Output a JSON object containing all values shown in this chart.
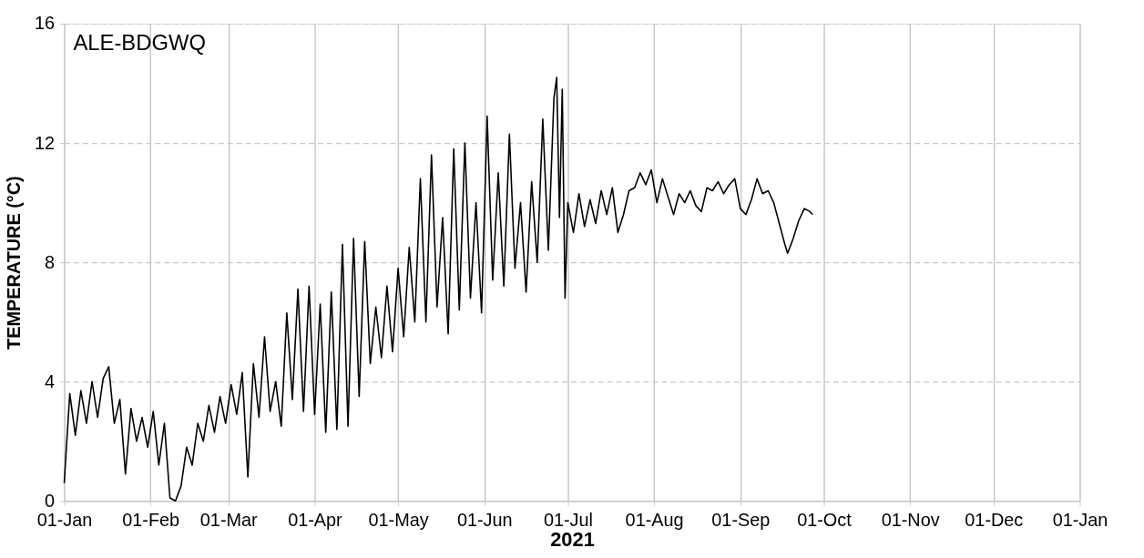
{
  "chart_data": {
    "type": "line",
    "xlabel": "2021",
    "ylabel": "TEMPERATURE (°C)",
    "annotations": [
      "ALE-BDGWQ"
    ],
    "x": [
      "2021-01-01",
      "2021-01-03",
      "2021-01-05",
      "2021-01-07",
      "2021-01-09",
      "2021-01-11",
      "2021-01-13",
      "2021-01-15",
      "2021-01-17",
      "2021-01-19",
      "2021-01-21",
      "2021-01-23",
      "2021-01-25",
      "2021-01-27",
      "2021-01-29",
      "2021-01-31",
      "2021-02-02",
      "2021-02-04",
      "2021-02-06",
      "2021-02-08",
      "2021-02-10",
      "2021-02-12",
      "2021-02-14",
      "2021-02-16",
      "2021-02-18",
      "2021-02-20",
      "2021-02-22",
      "2021-02-24",
      "2021-02-26",
      "2021-02-28",
      "2021-03-02",
      "2021-03-04",
      "2021-03-06",
      "2021-03-08",
      "2021-03-10",
      "2021-03-12",
      "2021-03-14",
      "2021-03-16",
      "2021-03-18",
      "2021-03-20",
      "2021-03-22",
      "2021-03-24",
      "2021-03-26",
      "2021-03-28",
      "2021-03-30",
      "2021-04-01",
      "2021-04-03",
      "2021-04-05",
      "2021-04-07",
      "2021-04-09",
      "2021-04-11",
      "2021-04-13",
      "2021-04-15",
      "2021-04-17",
      "2021-04-19",
      "2021-04-21",
      "2021-04-23",
      "2021-04-25",
      "2021-04-27",
      "2021-04-29",
      "2021-05-01",
      "2021-05-03",
      "2021-05-05",
      "2021-05-07",
      "2021-05-09",
      "2021-05-11",
      "2021-05-13",
      "2021-05-15",
      "2021-05-17",
      "2021-05-19",
      "2021-05-21",
      "2021-05-23",
      "2021-05-25",
      "2021-05-27",
      "2021-05-29",
      "2021-05-31",
      "2021-06-02",
      "2021-06-04",
      "2021-06-06",
      "2021-06-08",
      "2021-06-10",
      "2021-06-12",
      "2021-06-14",
      "2021-06-16",
      "2021-06-18",
      "2021-06-20",
      "2021-06-22",
      "2021-06-24",
      "2021-06-26",
      "2021-06-27",
      "2021-06-28",
      "2021-06-29",
      "2021-06-30",
      "2021-07-01",
      "2021-07-03",
      "2021-07-05",
      "2021-07-07",
      "2021-07-09",
      "2021-07-11",
      "2021-07-13",
      "2021-07-15",
      "2021-07-17",
      "2021-07-19",
      "2021-07-21",
      "2021-07-23",
      "2021-07-25",
      "2021-07-27",
      "2021-07-29",
      "2021-07-31",
      "2021-08-02",
      "2021-08-04",
      "2021-08-06",
      "2021-08-08",
      "2021-08-10",
      "2021-08-12",
      "2021-08-14",
      "2021-08-16",
      "2021-08-18",
      "2021-08-20",
      "2021-08-22",
      "2021-08-24",
      "2021-08-26",
      "2021-08-28",
      "2021-08-30",
      "2021-09-01",
      "2021-09-03",
      "2021-09-05",
      "2021-09-07",
      "2021-09-09",
      "2021-09-11",
      "2021-09-13",
      "2021-09-15",
      "2021-09-17",
      "2021-09-18",
      "2021-09-20",
      "2021-09-22",
      "2021-09-24",
      "2021-09-26",
      "2021-09-27"
    ],
    "series": [
      {
        "color": "#000000",
        "values": [
          0.6,
          3.6,
          2.2,
          3.7,
          2.6,
          4.0,
          2.8,
          4.1,
          4.5,
          2.6,
          3.4,
          0.9,
          3.1,
          2.0,
          2.8,
          1.8,
          3.0,
          1.2,
          2.6,
          0.1,
          0.0,
          0.5,
          1.8,
          1.2,
          2.6,
          2.0,
          3.2,
          2.3,
          3.5,
          2.6,
          3.9,
          2.9,
          4.3,
          0.8,
          4.6,
          2.8,
          5.5,
          3.0,
          4.0,
          2.5,
          6.3,
          3.4,
          7.1,
          3.0,
          7.2,
          2.9,
          6.6,
          2.3,
          7.0,
          2.4,
          8.6,
          2.5,
          8.8,
          3.5,
          8.7,
          4.6,
          6.5,
          4.8,
          7.2,
          5.0,
          7.8,
          5.5,
          8.5,
          6.0,
          10.8,
          6.0,
          11.6,
          6.5,
          9.5,
          5.6,
          11.8,
          6.4,
          12.0,
          6.8,
          10.0,
          6.3,
          12.9,
          7.4,
          11.0,
          7.2,
          12.3,
          7.8,
          10.0,
          7.0,
          10.7,
          8.0,
          12.8,
          8.4,
          13.5,
          14.2,
          9.5,
          13.8,
          6.8,
          10.0,
          9.0,
          10.3,
          9.2,
          10.1,
          9.3,
          10.4,
          9.6,
          10.5,
          9.0,
          9.6,
          10.4,
          10.5,
          11.0,
          10.6,
          11.1,
          10.0,
          10.8,
          10.2,
          9.6,
          10.3,
          10.0,
          10.4,
          9.9,
          9.7,
          10.5,
          10.4,
          10.7,
          10.3,
          10.6,
          10.8,
          9.8,
          9.6,
          10.1,
          10.8,
          10.3,
          10.4,
          10.0,
          9.3,
          8.6,
          8.3,
          8.8,
          9.4,
          9.8,
          9.7,
          9.6
        ]
      }
    ],
    "xlim": [
      "2021-01-01",
      "2022-01-01"
    ],
    "xticks": [
      {
        "value": "2021-01-01",
        "label": "01-Jan"
      },
      {
        "value": "2021-02-01",
        "label": "01-Feb"
      },
      {
        "value": "2021-03-01",
        "label": "01-Mar"
      },
      {
        "value": "2021-04-01",
        "label": "01-Apr"
      },
      {
        "value": "2021-05-01",
        "label": "01-May"
      },
      {
        "value": "2021-06-01",
        "label": "01-Jun"
      },
      {
        "value": "2021-07-01",
        "label": "01-Jul"
      },
      {
        "value": "2021-08-01",
        "label": "01-Aug"
      },
      {
        "value": "2021-09-01",
        "label": "01-Sep"
      },
      {
        "value": "2021-10-01",
        "label": "01-Oct"
      },
      {
        "value": "2021-11-01",
        "label": "01-Nov"
      },
      {
        "value": "2021-12-01",
        "label": "01-Dec"
      },
      {
        "value": "2022-01-01",
        "label": "01-Jan"
      }
    ],
    "ylim": [
      0,
      16
    ],
    "yticks": [
      0,
      4,
      8,
      12,
      16
    ],
    "grid": true,
    "marker": "none",
    "line_style": "solid"
  }
}
